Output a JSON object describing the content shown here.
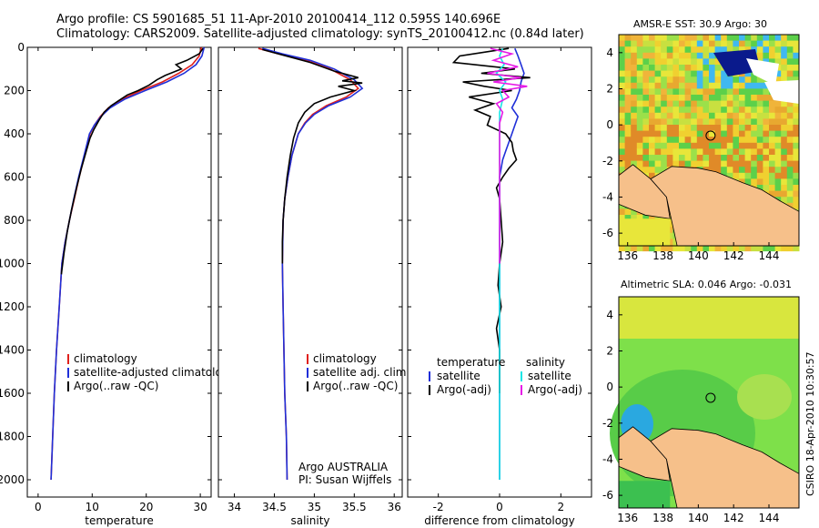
{
  "header": {
    "line1": "Argo profile: CS 5901685_51 11-Apr-2010 20100414_112 0.595S 140.696E",
    "line2": "Climatology: CARS2009. Satellite-adjusted climatology: synTS_20100412.nc (0.84d later)"
  },
  "stamp": "CSIRO 18-Apr-2010 10:30:57",
  "colors": {
    "clim": "#e0201c",
    "sat": "#1f2fd8",
    "argo": "#000000",
    "sat_diff": "#19e6e6",
    "argo_adj": "#e619e6"
  },
  "chart_data": [
    {
      "type": "line",
      "xlabel": "temperature",
      "ylabel": "",
      "xlim": [
        -2,
        32
      ],
      "ylim": [
        2080,
        0
      ],
      "xticks": [
        "0",
        "10",
        "20",
        "30"
      ],
      "xtick_values": [
        0,
        10,
        20,
        30
      ],
      "yticks": [
        "0",
        "200",
        "400",
        "600",
        "800",
        "1000",
        "1200",
        "1400",
        "1600",
        "1800",
        "2000"
      ],
      "ytick_values": [
        0,
        200,
        400,
        600,
        800,
        1000,
        1200,
        1400,
        1600,
        1800,
        2000
      ],
      "legend": [
        "climatology",
        "satellite-adjusted climatology",
        "Argo(..raw -QC)"
      ],
      "series": [
        {
          "name": "climatology",
          "color": "clim",
          "points": [
            [
              30.2,
              0
            ],
            [
              29.8,
              40
            ],
            [
              28.5,
              80
            ],
            [
              26,
              120
            ],
            [
              23,
              160
            ],
            [
              19,
              200
            ],
            [
              15.5,
              240
            ],
            [
              13,
              280
            ],
            [
              11.5,
              320
            ],
            [
              10.4,
              360
            ],
            [
              9.6,
              400
            ],
            [
              8.6,
              500
            ],
            [
              7.6,
              600
            ],
            [
              6.7,
              700
            ],
            [
              5.8,
              800
            ],
            [
              5,
              900
            ],
            [
              4.4,
              1000
            ],
            [
              3.9,
              1200
            ],
            [
              3.4,
              1400
            ],
            [
              3,
              1600
            ],
            [
              2.7,
              1800
            ],
            [
              2.4,
              2000
            ]
          ]
        },
        {
          "name": "satellite-adjusted climatology",
          "color": "sat",
          "points": [
            [
              30.7,
              0
            ],
            [
              30.3,
              40
            ],
            [
              29.2,
              80
            ],
            [
              27,
              120
            ],
            [
              23.8,
              160
            ],
            [
              19.8,
              200
            ],
            [
              16,
              240
            ],
            [
              13.3,
              280
            ],
            [
              11.6,
              320
            ],
            [
              10.4,
              360
            ],
            [
              9.5,
              400
            ],
            [
              8.5,
              500
            ],
            [
              7.5,
              600
            ],
            [
              6.6,
              700
            ],
            [
              5.8,
              800
            ],
            [
              5,
              900
            ],
            [
              4.4,
              1000
            ],
            [
              3.9,
              1200
            ],
            [
              3.4,
              1400
            ],
            [
              3,
              1600
            ],
            [
              2.7,
              1800
            ],
            [
              2.4,
              2000
            ]
          ]
        },
        {
          "name": "Argo(..raw -QC)",
          "color": "argo",
          "points": [
            [
              30.5,
              5
            ],
            [
              29.8,
              30
            ],
            [
              27.5,
              60
            ],
            [
              25.5,
              80
            ],
            [
              26.5,
              100
            ],
            [
              23.5,
              130
            ],
            [
              22,
              150
            ],
            [
              20.5,
              175
            ],
            [
              18.5,
              200
            ],
            [
              16.5,
              220
            ],
            [
              15,
              245
            ],
            [
              13.5,
              270
            ],
            [
              12.2,
              300
            ],
            [
              11.2,
              340
            ],
            [
              10.3,
              380
            ],
            [
              9.6,
              420
            ],
            [
              8.9,
              480
            ],
            [
              8,
              560
            ],
            [
              7.1,
              650
            ],
            [
              6.2,
              750
            ],
            [
              5.4,
              850
            ],
            [
              4.8,
              950
            ],
            [
              4.3,
              1050
            ]
          ]
        }
      ]
    },
    {
      "type": "line",
      "xlabel": "salinity",
      "xlim": [
        33.8,
        36.1
      ],
      "ylim": [
        2080,
        0
      ],
      "xticks": [
        "34",
        "34.5",
        "35",
        "35.5",
        "36"
      ],
      "xtick_values": [
        34,
        34.5,
        35,
        35.5,
        36
      ],
      "legend": [
        "climatology",
        "satellite adj. clim.",
        "Argo(..raw -QC)"
      ],
      "annotation": [
        "Argo AUSTRALIA",
        "PI: Susan Wijffels"
      ],
      "series": [
        {
          "name": "climatology",
          "color": "clim",
          "points": [
            [
              34.3,
              5
            ],
            [
              34.55,
              30
            ],
            [
              34.9,
              60
            ],
            [
              35.2,
              100
            ],
            [
              35.45,
              150
            ],
            [
              35.55,
              190
            ],
            [
              35.4,
              230
            ],
            [
              35.15,
              270
            ],
            [
              34.98,
              310
            ],
            [
              34.88,
              350
            ],
            [
              34.8,
              400
            ],
            [
              34.72,
              500
            ],
            [
              34.67,
              600
            ],
            [
              34.63,
              700
            ],
            [
              34.61,
              800
            ],
            [
              34.6,
              1000
            ],
            [
              34.61,
              1200
            ],
            [
              34.62,
              1400
            ],
            [
              34.63,
              1600
            ],
            [
              34.65,
              1800
            ],
            [
              34.66,
              2000
            ]
          ]
        },
        {
          "name": "satellite adj. clim.",
          "color": "sat",
          "points": [
            [
              34.35,
              5
            ],
            [
              34.6,
              30
            ],
            [
              34.95,
              60
            ],
            [
              35.25,
              100
            ],
            [
              35.5,
              150
            ],
            [
              35.6,
              190
            ],
            [
              35.45,
              230
            ],
            [
              35.18,
              270
            ],
            [
              35,
              310
            ],
            [
              34.89,
              350
            ],
            [
              34.8,
              400
            ],
            [
              34.72,
              500
            ],
            [
              34.67,
              600
            ],
            [
              34.63,
              700
            ],
            [
              34.61,
              800
            ],
            [
              34.6,
              1000
            ],
            [
              34.61,
              1200
            ],
            [
              34.62,
              1400
            ],
            [
              34.63,
              1600
            ],
            [
              34.65,
              1800
            ],
            [
              34.66,
              2000
            ]
          ]
        },
        {
          "name": "Argo(..raw -QC)",
          "color": "argo",
          "points": [
            [
              34.35,
              10
            ],
            [
              34.6,
              35
            ],
            [
              34.95,
              70
            ],
            [
              35.25,
              110
            ],
            [
              35.55,
              140
            ],
            [
              35.35,
              155
            ],
            [
              35.6,
              165
            ],
            [
              35.3,
              180
            ],
            [
              35.5,
              200
            ],
            [
              35.2,
              230
            ],
            [
              35,
              260
            ],
            [
              34.88,
              300
            ],
            [
              34.8,
              350
            ],
            [
              34.74,
              420
            ],
            [
              34.7,
              500
            ],
            [
              34.66,
              600
            ],
            [
              34.63,
              700
            ],
            [
              34.61,
              800
            ],
            [
              34.6,
              900
            ],
            [
              34.6,
              1000
            ]
          ]
        }
      ]
    },
    {
      "type": "line",
      "xlabel": "difference from climatology",
      "xlim": [
        -3,
        3
      ],
      "ylim": [
        2080,
        0
      ],
      "xticks": [
        "-2",
        "0",
        "2"
      ],
      "xtick_values": [
        -2,
        0,
        2
      ],
      "legend_left": [
        "temperature",
        "satellite",
        "Argo(-adj)"
      ],
      "legend_right": [
        "salinity",
        "satellite",
        "Argo(-adj)"
      ],
      "series": [
        {
          "name": "temperature satellite",
          "color": "sat",
          "points": [
            [
              0.5,
              5
            ],
            [
              0.6,
              40
            ],
            [
              0.7,
              80
            ],
            [
              0.8,
              120
            ],
            [
              0.7,
              160
            ],
            [
              0.65,
              200
            ],
            [
              0.55,
              240
            ],
            [
              0.4,
              280
            ],
            [
              0.6,
              320
            ],
            [
              0.5,
              360
            ],
            [
              0.4,
              400
            ],
            [
              0.3,
              440
            ],
            [
              0.2,
              480
            ],
            [
              0.1,
              520
            ],
            [
              0,
              600
            ],
            [
              0,
              700
            ],
            [
              0,
              800
            ],
            [
              0,
              1000
            ],
            [
              0,
              1200
            ],
            [
              0,
              1400
            ],
            [
              0,
              1600
            ],
            [
              0,
              1800
            ],
            [
              0,
              2000
            ]
          ]
        },
        {
          "name": "temperature Argo(-adj)",
          "color": "argo",
          "points": [
            [
              0.3,
              5
            ],
            [
              -1.3,
              40
            ],
            [
              -1.5,
              70
            ],
            [
              0.5,
              100
            ],
            [
              -0.6,
              120
            ],
            [
              1,
              140
            ],
            [
              -1.2,
              160
            ],
            [
              -0.5,
              180
            ],
            [
              0.4,
              200
            ],
            [
              -1,
              230
            ],
            [
              -0.2,
              260
            ],
            [
              -0.8,
              290
            ],
            [
              -0.3,
              320
            ],
            [
              -0.4,
              360
            ],
            [
              0.2,
              400
            ],
            [
              0.4,
              440
            ],
            [
              0.45,
              480
            ],
            [
              0.55,
              520
            ],
            [
              0.3,
              560
            ],
            [
              0.1,
              600
            ],
            [
              -0.1,
              650
            ],
            [
              0,
              700
            ],
            [
              0.05,
              800
            ],
            [
              0.1,
              900
            ],
            [
              0,
              1000
            ],
            [
              -0.05,
              1100
            ],
            [
              0.05,
              1200
            ],
            [
              -0.1,
              1300
            ],
            [
              0,
              1400
            ],
            [
              0,
              1500
            ],
            [
              0,
              1600
            ]
          ]
        },
        {
          "name": "salinity satellite",
          "color": "sat_diff",
          "points": [
            [
              0.1,
              5
            ],
            [
              0,
              40
            ],
            [
              0.15,
              80
            ],
            [
              -0.1,
              120
            ],
            [
              0.2,
              160
            ],
            [
              0,
              200
            ],
            [
              0.1,
              240
            ],
            [
              0,
              300
            ],
            [
              0,
              400
            ],
            [
              0,
              600
            ],
            [
              0,
              800
            ],
            [
              0,
              1000
            ],
            [
              0,
              1200
            ],
            [
              0,
              1400
            ],
            [
              0,
              1600
            ],
            [
              0,
              1800
            ],
            [
              0,
              2000
            ]
          ]
        },
        {
          "name": "salinity Argo(-adj)",
          "color": "argo_adj",
          "points": [
            [
              -0.3,
              5
            ],
            [
              0.4,
              30
            ],
            [
              -0.2,
              60
            ],
            [
              0.6,
              90
            ],
            [
              -0.4,
              120
            ],
            [
              0.7,
              140
            ],
            [
              -0.2,
              160
            ],
            [
              0.9,
              180
            ],
            [
              0.1,
              200
            ],
            [
              0.3,
              230
            ],
            [
              -0.1,
              260
            ],
            [
              0.1,
              300
            ],
            [
              0,
              350
            ],
            [
              0,
              450
            ],
            [
              0,
              600
            ],
            [
              0,
              800
            ],
            [
              0,
              1000
            ]
          ]
        }
      ]
    }
  ],
  "maps": [
    {
      "title": "AMSR-E SST: 30.9 Argo: 30",
      "xticks": [
        "136",
        "138",
        "140",
        "142",
        "144"
      ],
      "yticks": [
        "4",
        "2",
        "0",
        "-2",
        "-4",
        "-6"
      ],
      "argo_position": {
        "lat": -0.595,
        "lon": 140.696
      }
    },
    {
      "title": "Altimetric SLA: 0.046 Argo: -0.031",
      "xticks": [
        "136",
        "138",
        "140",
        "142",
        "144"
      ],
      "yticks": [
        "4",
        "2",
        "0",
        "-2",
        "-4",
        "-6"
      ],
      "argo_position": {
        "lat": -0.595,
        "lon": 140.696
      }
    }
  ]
}
